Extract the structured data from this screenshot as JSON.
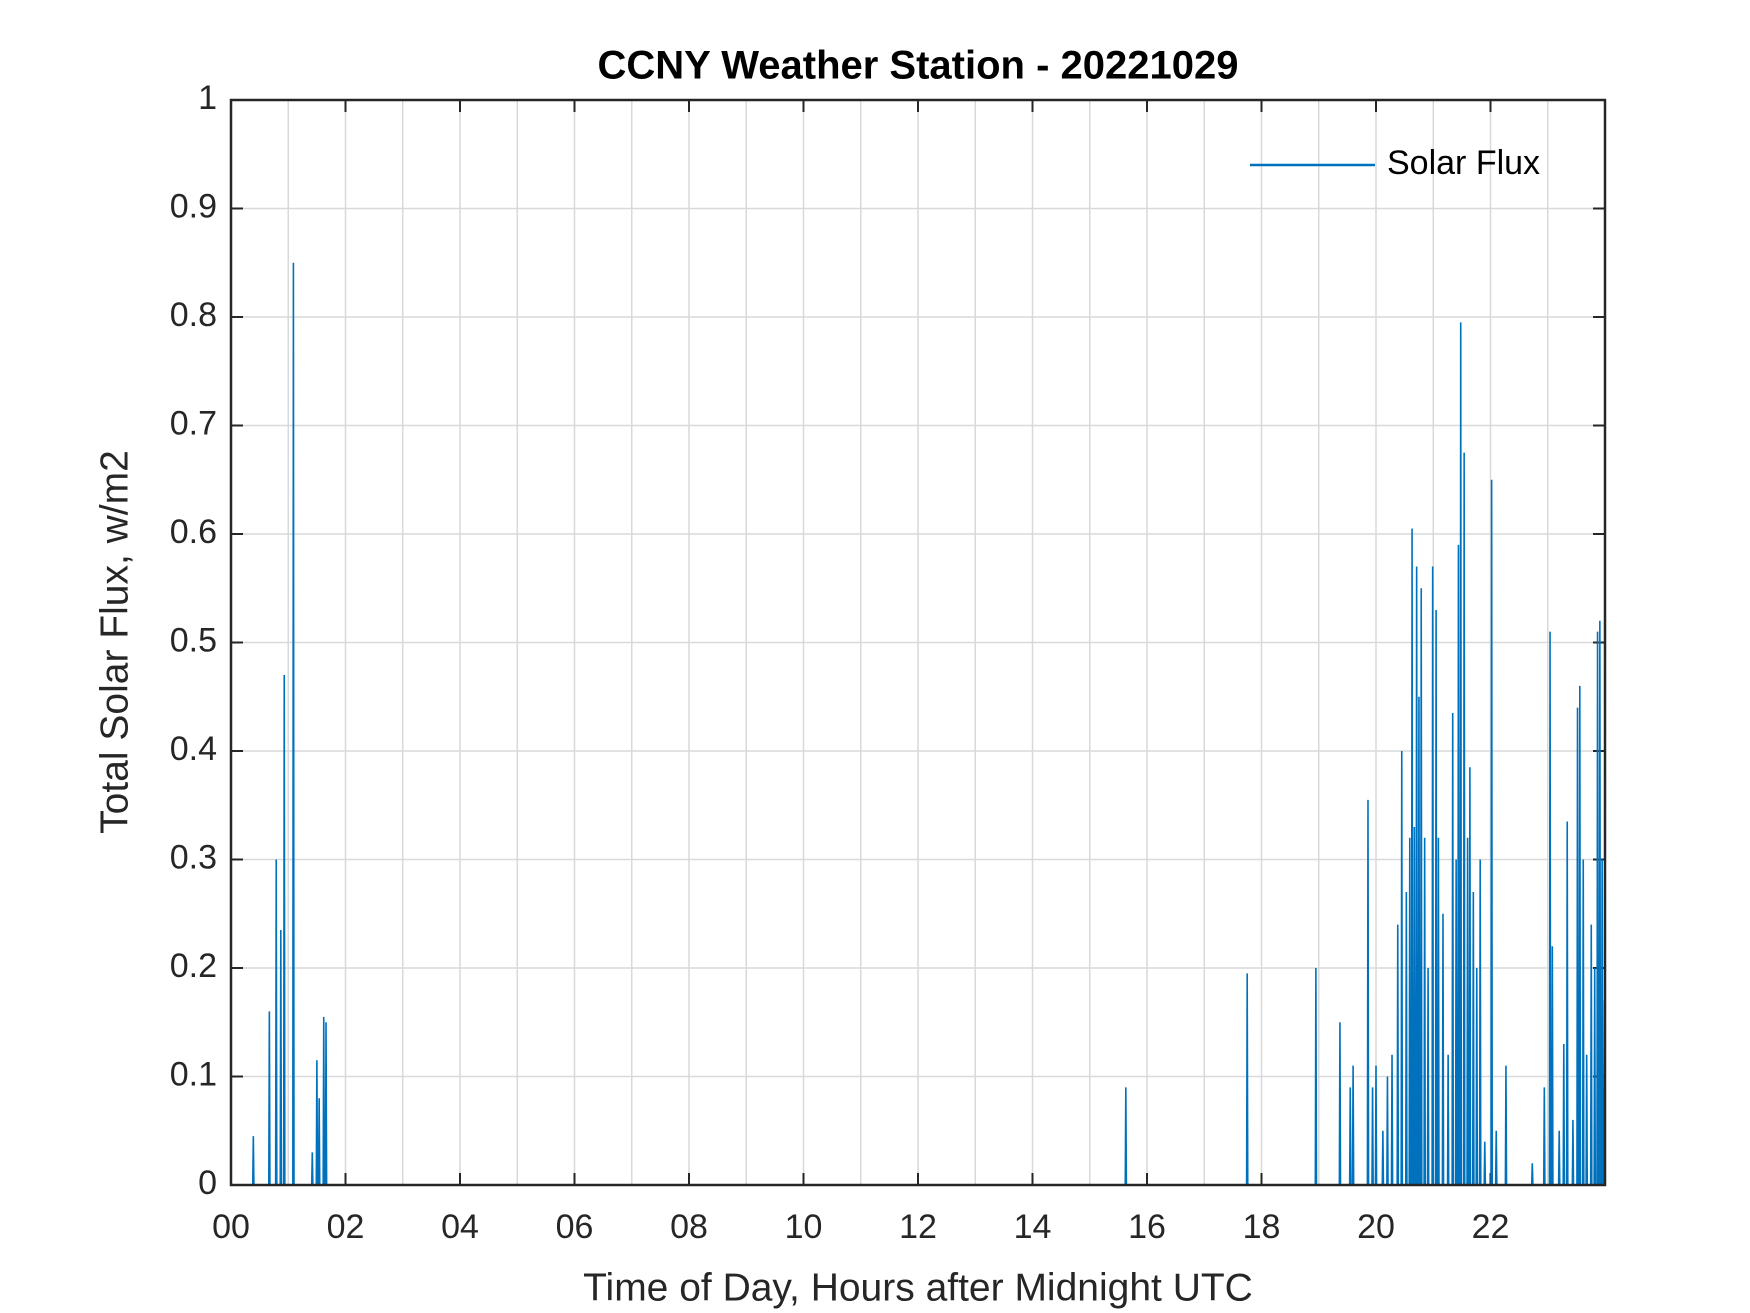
{
  "chart_data": {
    "type": "line",
    "title": "CCNY Weather Station - 20221029",
    "xlabel": "Time of Day, Hours after Midnight UTC",
    "ylabel": "Total Solar Flux, w/m2",
    "xlim": [
      0,
      24
    ],
    "ylim": [
      0,
      1
    ],
    "xticks": [
      {
        "value": 0,
        "label": "00"
      },
      {
        "value": 2,
        "label": "02"
      },
      {
        "value": 4,
        "label": "04"
      },
      {
        "value": 6,
        "label": "06"
      },
      {
        "value": 8,
        "label": "08"
      },
      {
        "value": 10,
        "label": "10"
      },
      {
        "value": 12,
        "label": "12"
      },
      {
        "value": 14,
        "label": "14"
      },
      {
        "value": 16,
        "label": "16"
      },
      {
        "value": 18,
        "label": "18"
      },
      {
        "value": 20,
        "label": "20"
      },
      {
        "value": 22,
        "label": "22"
      }
    ],
    "xminorticks": [
      1,
      3,
      5,
      7,
      9,
      11,
      13,
      15,
      17,
      19,
      21,
      23
    ],
    "yticks": [
      0,
      0.1,
      0.2,
      0.3,
      0.4,
      0.5,
      0.6,
      0.7,
      0.8,
      0.9,
      1
    ],
    "grid": true,
    "legend": "upper right",
    "x": [
      0,
      0.38,
      0.39,
      0.4,
      0.66,
      0.67,
      0.68,
      0.78,
      0.79,
      0.8,
      0.86,
      0.87,
      0.88,
      0.92,
      0.93,
      0.94,
      1.08,
      1.09,
      1.1,
      1.41,
      1.42,
      1.43,
      1.49,
      1.5,
      1.51,
      1.53,
      1.54,
      1.55,
      1.61,
      1.62,
      1.63,
      1.65,
      1.66,
      1.67,
      15.62,
      15.63,
      15.64,
      17.74,
      17.75,
      17.76,
      18.94,
      18.95,
      18.96,
      19.36,
      19.37,
      19.38,
      19.54,
      19.55,
      19.56,
      19.59,
      19.6,
      19.61,
      19.85,
      19.86,
      19.87,
      19.93,
      19.94,
      19.95,
      19.99,
      20.0,
      20.01,
      20.11,
      20.12,
      20.13,
      20.19,
      20.2,
      20.21,
      20.27,
      20.28,
      20.29,
      20.37,
      20.38,
      20.39,
      20.44,
      20.45,
      20.46,
      20.52,
      20.53,
      20.54,
      20.58,
      20.59,
      20.6,
      20.62,
      20.63,
      20.64,
      20.66,
      20.67,
      20.68,
      20.7,
      20.71,
      20.72,
      20.74,
      20.75,
      20.76,
      20.78,
      20.79,
      20.8,
      20.84,
      20.85,
      20.86,
      20.9,
      20.91,
      20.92,
      20.98,
      20.99,
      21.0,
      21.04,
      21.05,
      21.06,
      21.08,
      21.09,
      21.1,
      21.16,
      21.17,
      21.18,
      21.25,
      21.26,
      21.27,
      21.33,
      21.34,
      21.35,
      21.39,
      21.4,
      21.41,
      21.43,
      21.44,
      21.45,
      21.47,
      21.48,
      21.49,
      21.53,
      21.54,
      21.55,
      21.59,
      21.6,
      21.61,
      21.63,
      21.64,
      21.65,
      21.69,
      21.7,
      21.71,
      21.75,
      21.76,
      21.77,
      21.81,
      21.82,
      21.83,
      21.89,
      21.9,
      21.91,
      22.01,
      22.02,
      22.03,
      22.09,
      22.1,
      22.11,
      22.26,
      22.27,
      22.28,
      22.72,
      22.73,
      22.74,
      22.93,
      22.94,
      22.95,
      23.03,
      23.04,
      23.05,
      23.07,
      23.08,
      23.09,
      23.19,
      23.2,
      23.21,
      23.27,
      23.28,
      23.29,
      23.33,
      23.34,
      23.35,
      23.43,
      23.44,
      23.45,
      23.51,
      23.52,
      23.53,
      23.55,
      23.56,
      23.57,
      23.61,
      23.62,
      23.63,
      23.67,
      23.68,
      23.69,
      23.75,
      23.76,
      23.77,
      23.81,
      23.82,
      23.83,
      23.86,
      23.87,
      23.88,
      23.9,
      23.91,
      23.92,
      23.94,
      23.95,
      23.96,
      23.98,
      23.99
    ],
    "series": [
      {
        "name": "Solar Flux",
        "color": "#0072bd",
        "values": [
          0,
          0,
          0.045,
          0,
          0,
          0.16,
          0,
          0,
          0.3,
          0,
          0,
          0.235,
          0,
          0,
          0.47,
          0,
          0,
          0.85,
          0,
          0,
          0.03,
          0,
          0,
          0.115,
          0,
          0,
          0.08,
          0,
          0,
          0.155,
          0,
          0,
          0.15,
          0,
          0,
          0.09,
          0,
          0,
          0.195,
          0,
          0,
          0.2,
          0,
          0,
          0.15,
          0,
          0,
          0.09,
          0,
          0,
          0.11,
          0,
          0,
          0.355,
          0,
          0,
          0.09,
          0,
          0,
          0.11,
          0,
          0,
          0.05,
          0,
          0,
          0.1,
          0,
          0,
          0.12,
          0,
          0,
          0.24,
          0,
          0,
          0.4,
          0,
          0,
          0.27,
          0,
          0,
          0.32,
          0,
          0,
          0.605,
          0,
          0,
          0.33,
          0,
          0,
          0.57,
          0,
          0,
          0.45,
          0,
          0,
          0.55,
          0,
          0,
          0.32,
          0,
          0,
          0.2,
          0,
          0,
          0.57,
          0,
          0,
          0.53,
          0,
          0,
          0.32,
          0,
          0,
          0.25,
          0,
          0,
          0.12,
          0,
          0,
          0.435,
          0,
          0,
          0.3,
          0,
          0,
          0.59,
          0,
          0,
          0.795,
          0,
          0,
          0.675,
          0,
          0,
          0.32,
          0,
          0,
          0.385,
          0,
          0,
          0.27,
          0,
          0,
          0.2,
          0,
          0,
          0.3,
          0,
          0,
          0.04,
          0,
          0,
          0.65,
          0,
          0,
          0.05,
          0,
          0,
          0.11,
          0,
          0,
          0.02,
          0,
          0,
          0.09,
          0,
          0,
          0.51,
          0,
          0,
          0.22,
          0,
          0,
          0.05,
          0,
          0,
          0.13,
          0,
          0,
          0.335,
          0,
          0,
          0.06,
          0,
          0,
          0.44,
          0,
          0,
          0.46,
          0,
          0,
          0.3,
          0,
          0,
          0.12,
          0,
          0,
          0.24,
          0,
          0,
          0.2,
          0,
          0,
          0.51,
          0,
          0,
          0.52,
          0,
          0,
          0.3,
          0,
          0,
          0.17
        ]
      }
    ]
  }
}
